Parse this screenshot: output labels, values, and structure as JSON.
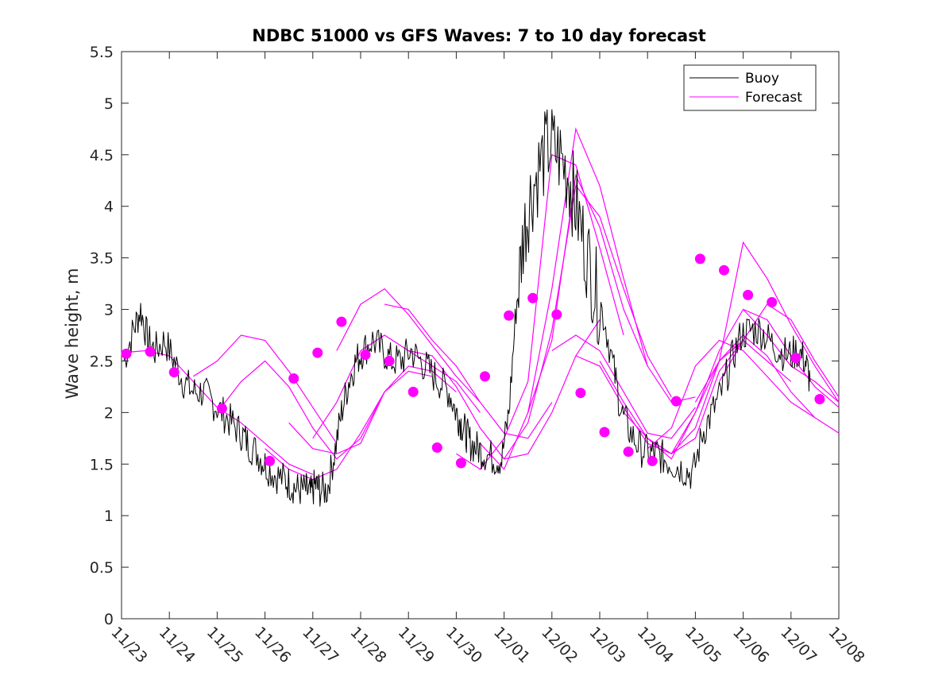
{
  "chart_data": {
    "type": "line",
    "title": "NDBC 51000 vs GFS Waves: 7 to 10 day forecast",
    "xlabel": "",
    "ylabel": "Wave height, m",
    "xlim": [
      0,
      15
    ],
    "ylim": [
      0,
      5.5
    ],
    "x_unit": "days since 11/23",
    "x_ticks": [
      0,
      1,
      2,
      3,
      4,
      5,
      6,
      7,
      8,
      9,
      10,
      11,
      12,
      13,
      14,
      15
    ],
    "x_tick_labels": [
      "11/23",
      "11/24",
      "11/25",
      "11/26",
      "11/27",
      "11/28",
      "11/29",
      "11/30",
      "12/01",
      "12/02",
      "12/03",
      "12/04",
      "12/05",
      "12/06",
      "12/07",
      "12/08"
    ],
    "y_ticks": [
      0,
      0.5,
      1,
      1.5,
      2,
      2.5,
      3,
      3.5,
      4,
      4.5,
      5,
      5.5
    ],
    "y_tick_labels": [
      "0",
      "0.5",
      "1",
      "1.5",
      "2",
      "2.5",
      "3",
      "3.5",
      "4",
      "4.5",
      "5",
      "5.5"
    ],
    "legend": {
      "position": "top-right",
      "entries": [
        "Buoy",
        "Forecast"
      ]
    },
    "colors": {
      "buoy": "#000000",
      "forecast": "#ff00ff",
      "axis": "#262626"
    },
    "series": [
      {
        "name": "Buoy",
        "x": [
          0.05,
          0.25,
          0.4,
          0.55,
          0.7,
          0.9,
          1.1,
          1.3,
          1.5,
          1.7,
          1.9,
          2.1,
          2.3,
          2.5,
          2.65,
          2.85,
          3.0,
          3.2,
          3.4,
          3.55,
          3.7,
          3.85,
          3.95,
          4.05,
          4.15,
          4.3,
          4.45,
          4.6,
          4.75,
          4.9,
          5.05,
          5.25,
          5.45,
          5.65,
          5.85,
          6.05,
          6.25,
          6.45,
          6.65,
          6.85,
          7.0,
          7.1,
          7.2,
          7.3,
          7.45,
          7.6,
          7.8,
          7.95,
          8.1,
          8.25,
          8.4,
          8.55,
          8.75,
          8.95,
          9.15,
          9.35,
          9.5,
          9.7,
          9.9,
          10.1,
          10.3,
          10.45,
          10.65,
          10.85,
          11.05,
          11.2,
          11.35,
          11.55,
          11.75,
          11.95,
          12.15,
          12.35,
          12.55,
          12.75,
          12.95,
          13.15,
          13.35,
          13.55,
          13.75,
          13.95,
          14.15,
          14.3,
          14.4
        ],
        "y": [
          2.5,
          2.8,
          3.0,
          2.7,
          2.6,
          2.7,
          2.5,
          2.3,
          2.2,
          2.2,
          2.1,
          2.0,
          1.9,
          1.8,
          1.7,
          1.6,
          1.5,
          1.4,
          1.35,
          1.3,
          1.25,
          1.25,
          1.2,
          1.3,
          1.25,
          1.25,
          1.6,
          2.0,
          2.3,
          2.5,
          2.6,
          2.7,
          2.6,
          2.5,
          2.5,
          2.6,
          2.5,
          2.4,
          2.3,
          2.2,
          2.0,
          1.9,
          1.8,
          1.7,
          1.65,
          1.6,
          1.55,
          1.55,
          2.0,
          3.0,
          3.7,
          4.1,
          4.4,
          4.6,
          4.5,
          4.3,
          4.0,
          3.6,
          3.2,
          2.9,
          2.4,
          2.0,
          1.8,
          1.65,
          1.6,
          1.6,
          1.55,
          1.5,
          1.45,
          1.4,
          1.8,
          2.0,
          2.2,
          2.5,
          2.75,
          2.8,
          2.8,
          2.7,
          2.6,
          2.55,
          2.6,
          2.5,
          2.3
        ]
      },
      {
        "name": "Forecast",
        "runs": [
          {
            "x": [
              0,
              0.5,
              1,
              1.5,
              2,
              2.5,
              3,
              3.5,
              4
            ],
            "y": [
              2.58,
              2.6,
              2.55,
              2.3,
              2.05,
              1.9,
              1.7,
              1.5,
              1.4
            ]
          },
          {
            "x": [
              1.5,
              2,
              2.5,
              3,
              3.5,
              4,
              4.5
            ],
            "y": [
              2.35,
              2.5,
              2.75,
              2.7,
              2.4,
              2.05,
              1.7
            ]
          },
          {
            "x": [
              2,
              2.5,
              3,
              3.5,
              4,
              4.5,
              5,
              5.5
            ],
            "y": [
              2.0,
              2.3,
              2.5,
              2.25,
              1.85,
              1.55,
              1.75,
              2.2
            ]
          },
          {
            "x": [
              3,
              3.5,
              4,
              4.5,
              5,
              5.5,
              6,
              6.5
            ],
            "y": [
              1.65,
              1.45,
              1.35,
              1.45,
              1.8,
              2.2,
              2.4,
              2.35
            ]
          },
          {
            "x": [
              3.5,
              4,
              4.5,
              5,
              5.5,
              6,
              6.5,
              7
            ],
            "y": [
              1.9,
              1.65,
              1.6,
              1.7,
              2.2,
              2.45,
              2.4,
              2.2
            ]
          },
          {
            "x": [
              4,
              4.5,
              5,
              5.5,
              6,
              6.5,
              7,
              7.5
            ],
            "y": [
              1.75,
              2.1,
              2.6,
              2.75,
              2.6,
              2.45,
              2.3,
              2.0
            ]
          },
          {
            "x": [
              4.5,
              5,
              5.5,
              6,
              6.5,
              7,
              7.5
            ],
            "y": [
              2.6,
              3.05,
              3.2,
              2.95,
              2.65,
              2.35,
              2.1
            ]
          },
          {
            "x": [
              5.5,
              6,
              6.5,
              7,
              7.5,
              8,
              8.5,
              9
            ],
            "y": [
              3.05,
              3.0,
              2.7,
              2.45,
              2.1,
              1.8,
              1.75,
              2.1
            ]
          },
          {
            "x": [
              6,
              6.5,
              7,
              7.5,
              8,
              8.5,
              9,
              9.5,
              10
            ],
            "y": [
              2.6,
              2.55,
              2.25,
              1.85,
              1.55,
              1.6,
              2.0,
              2.55,
              2.9
            ]
          },
          {
            "x": [
              7,
              7.5,
              8,
              8.5,
              9,
              9.5,
              10,
              10.5
            ],
            "y": [
              1.6,
              1.45,
              1.75,
              2.3,
              4.5,
              4.4,
              3.6,
              2.75
            ]
          },
          {
            "x": [
              7.5,
              8,
              8.5,
              9,
              9.5,
              10,
              10.5,
              11
            ],
            "y": [
              1.7,
              1.45,
              2.0,
              3.2,
              4.75,
              4.2,
              3.3,
              2.45
            ]
          },
          {
            "x": [
              8,
              8.5,
              9,
              9.5,
              10,
              10.5,
              11,
              11.5
            ],
            "y": [
              1.55,
              1.9,
              2.8,
              4.2,
              3.9,
              3.2,
              2.55,
              2.15
            ]
          },
          {
            "x": [
              8.5,
              9,
              9.5,
              10,
              10.5,
              11,
              11.5,
              12
            ],
            "y": [
              2.0,
              2.7,
              4.3,
              3.8,
              3.0,
              2.45,
              2.1,
              2.15
            ]
          },
          {
            "x": [
              9,
              9.5,
              10,
              10.5,
              11,
              11.5,
              12
            ],
            "y": [
              2.6,
              2.75,
              2.6,
              2.2,
              1.8,
              1.75,
              2.05
            ]
          },
          {
            "x": [
              9.5,
              10,
              10.5,
              11,
              11.5,
              12,
              12.5,
              13
            ],
            "y": [
              2.55,
              2.45,
              2.05,
              1.7,
              1.6,
              1.75,
              2.4,
              2.7
            ]
          },
          {
            "x": [
              10,
              10.5,
              11,
              11.5,
              12,
              12.5,
              13,
              13.5,
              14
            ],
            "y": [
              2.5,
              2.1,
              1.75,
              1.55,
              2.0,
              2.5,
              2.7,
              2.5,
              2.3
            ]
          },
          {
            "x": [
              10.5,
              11,
              11.5,
              12,
              12.5,
              13,
              13.5,
              14,
              14.5
            ],
            "y": [
              2.0,
              1.75,
              1.6,
              1.85,
              2.5,
              2.75,
              2.55,
              2.2,
              1.95
            ]
          },
          {
            "x": [
              11,
              11.5,
              12,
              12.5,
              13,
              13.5,
              14,
              14.5,
              15
            ],
            "y": [
              1.65,
              1.85,
              2.45,
              2.7,
              2.6,
              2.35,
              2.1,
              1.95,
              1.8
            ]
          },
          {
            "x": [
              11.5,
              12,
              12.5,
              13,
              13.5,
              14,
              14.5,
              15
            ],
            "y": [
              1.6,
              2.0,
              2.6,
              3.0,
              2.9,
              2.55,
              2.25,
              2.05
            ]
          },
          {
            "x": [
              12,
              12.5,
              13,
              13.5,
              14,
              14.5,
              15
            ],
            "y": [
              2.1,
              2.5,
              3.65,
              3.3,
              2.85,
              2.45,
              2.1
            ]
          },
          {
            "x": [
              12.5,
              13,
              13.5,
              14,
              14.5,
              15
            ],
            "y": [
              2.3,
              2.7,
              3.05,
              2.9,
              2.5,
              2.15
            ]
          },
          {
            "x": [
              13,
              13.5,
              14,
              14.5,
              15
            ],
            "y": [
              3.0,
              2.75,
              2.45,
              2.3,
              2.1
            ]
          }
        ],
        "markers": {
          "x": [
            0.1,
            0.6,
            1.1,
            2.1,
            3.1,
            3.6,
            4.1,
            4.6,
            5.1,
            5.6,
            6.1,
            6.6,
            7.1,
            7.6,
            8.1,
            8.6,
            9.1,
            9.6,
            10.1,
            10.6,
            11.1,
            11.6,
            12.1,
            12.6,
            13.1,
            13.6,
            14.1,
            14.6
          ],
          "y": [
            2.57,
            2.59,
            2.39,
            2.04,
            1.53,
            2.33,
            2.58,
            2.88,
            2.56,
            2.5,
            2.2,
            1.66,
            1.51,
            2.35,
            2.94,
            3.11,
            2.95,
            2.19,
            1.81,
            1.62,
            1.53,
            2.11,
            3.49,
            3.38,
            3.14,
            3.07,
            2.53,
            2.13
          ]
        }
      }
    ]
  }
}
